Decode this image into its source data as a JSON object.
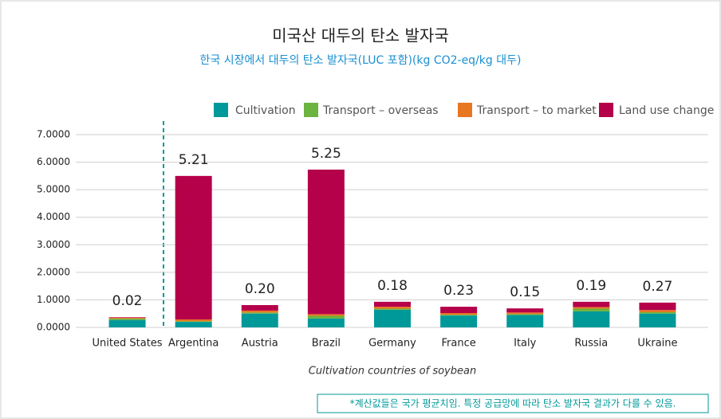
{
  "chart_data": {
    "type": "stacked_bar",
    "title": "미국산 대두의 탄소 발자국",
    "subtitle": "한국 시장에서 대두의 탄소 발자국(LUC 포함)(kg CO2-eq/kg 대두)",
    "x_label": "Cultivation countries of soybean",
    "note": "*계산값들은 국가 평균치임. 특정 공급망에 따라 탄소 발자국 결과가 다를 수 있음.",
    "categories": [
      "United States",
      "Argentina",
      "Austria",
      "Brazil",
      "Germany",
      "France",
      "Italy",
      "Russia",
      "Ukraine"
    ],
    "series": [
      {
        "name": "Cultivation",
        "color": "#00999a",
        "values": [
          0.27,
          0.2,
          0.5,
          0.32,
          0.64,
          0.43,
          0.45,
          0.58,
          0.5
        ]
      },
      {
        "name": "Transport – overseas",
        "color": "#6cb33f",
        "values": [
          0.05,
          0.02,
          0.04,
          0.1,
          0.04,
          0.03,
          0.03,
          0.1,
          0.05
        ]
      },
      {
        "name": "Transport – to market",
        "color": "#e87722",
        "values": [
          0.03,
          0.07,
          0.07,
          0.06,
          0.07,
          0.06,
          0.06,
          0.06,
          0.08
        ]
      },
      {
        "name": "Land use change",
        "color": "#b5004a",
        "values": [
          0.02,
          5.21,
          0.2,
          5.25,
          0.18,
          0.23,
          0.15,
          0.19,
          0.27
        ],
        "value_labels": [
          "0.02",
          "5.21",
          "0.20",
          "5.25",
          "0.18",
          "0.23",
          "0.15",
          "0.19",
          "0.27"
        ]
      }
    ],
    "ylim": [
      0,
      7
    ],
    "yticks": [
      {
        "value": 0,
        "label": "0.0000"
      },
      {
        "value": 1,
        "label": "1.0000"
      },
      {
        "value": 2,
        "label": "2.0000"
      },
      {
        "value": 3,
        "label": "3.0000"
      },
      {
        "value": 4,
        "label": "4.0000"
      },
      {
        "value": 5,
        "label": "5.0000"
      },
      {
        "value": 6,
        "label": "6.0000"
      },
      {
        "value": 7,
        "label": "7.0000"
      }
    ],
    "grid": true,
    "legend": "top-right"
  }
}
